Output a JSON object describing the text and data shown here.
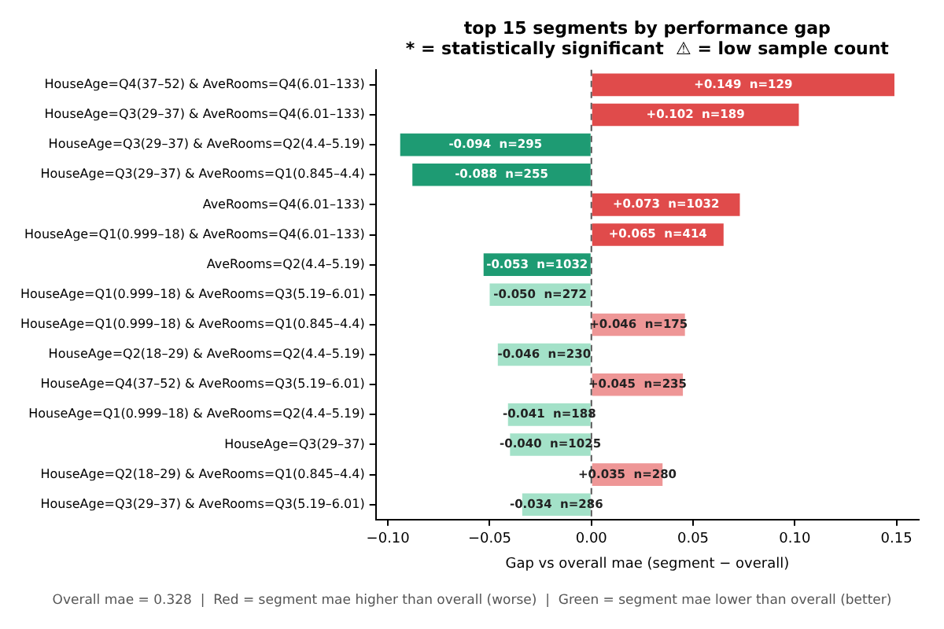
{
  "chart_data": {
    "type": "bar",
    "orientation": "horizontal",
    "title": "top 15 segments by performance gap",
    "subtitle": "* = statistically significant  ⚠ = low sample count",
    "xlabel": "Gap vs overall mae (segment − overall)",
    "annotations": [
      "Overall mae = 0.328  |  Red = segment mae higher than overall (worse)  |  Green = segment mae lower than overall (better)"
    ],
    "categories": [
      "HouseAge=Q4(37–52) & AveRooms=Q4(6.01–133)",
      "HouseAge=Q3(29–37) & AveRooms=Q4(6.01–133)",
      "HouseAge=Q3(29–37) & AveRooms=Q2(4.4–5.19)",
      "HouseAge=Q3(29–37) & AveRooms=Q1(0.845–4.4)",
      "AveRooms=Q4(6.01–133)",
      "HouseAge=Q1(0.999–18) & AveRooms=Q4(6.01–133)",
      "AveRooms=Q2(4.4–5.19)",
      "HouseAge=Q1(0.999–18) & AveRooms=Q3(5.19–6.01)",
      "HouseAge=Q1(0.999–18) & AveRooms=Q1(0.845–4.4)",
      "HouseAge=Q2(18–29) & AveRooms=Q2(4.4–5.19)",
      "HouseAge=Q4(37–52) & AveRooms=Q3(5.19–6.01)",
      "HouseAge=Q1(0.999–18) & AveRooms=Q2(4.4–5.19)",
      "HouseAge=Q3(29–37)",
      "HouseAge=Q2(18–29) & AveRooms=Q1(0.845–4.4)",
      "HouseAge=Q3(29–37) & AveRooms=Q3(5.19–6.01)"
    ],
    "values": [
      0.149,
      0.102,
      -0.094,
      -0.088,
      0.073,
      0.065,
      -0.053,
      -0.05,
      0.046,
      -0.046,
      0.045,
      -0.041,
      -0.04,
      0.035,
      -0.034
    ],
    "colors": [
      "#e04b4b",
      "#e04b4b",
      "#1e9b73",
      "#1e9b73",
      "#e04b4b",
      "#e04b4b",
      "#1e9b73",
      "#a3e1c8",
      "#ee9696",
      "#a3e1c8",
      "#ee9696",
      "#a3e1c8",
      "#a3e1c8",
      "#ee9696",
      "#a3e1c8"
    ],
    "value_labels": [
      "+0.149  n=129",
      "+0.102  n=189",
      "-0.094  n=295",
      "-0.088  n=255",
      "+0.073  n=1032",
      "+0.065  n=414",
      "-0.053  n=1032",
      "-0.050  n=272",
      "+0.046  n=175",
      "-0.046  n=230",
      "+0.045  n=235",
      "-0.041  n=188",
      "-0.040  n=1025",
      "+0.035  n=280",
      "-0.034  n=286"
    ],
    "xlim": [
      -0.106,
      0.161
    ],
    "xticks": [
      {
        "value": -0.1,
        "label": "−0.10"
      },
      {
        "value": -0.05,
        "label": "−0.05"
      },
      {
        "value": 0,
        "label": "0.00"
      },
      0.05,
      {
        "value": 0.1,
        "label": "0.10"
      },
      {
        "value": 0.15,
        "label": "0.15"
      }
    ],
    "ref_lines": [
      {
        "axis": "x",
        "value": 0,
        "color": "#555555",
        "line_style": "dashed"
      }
    ]
  }
}
